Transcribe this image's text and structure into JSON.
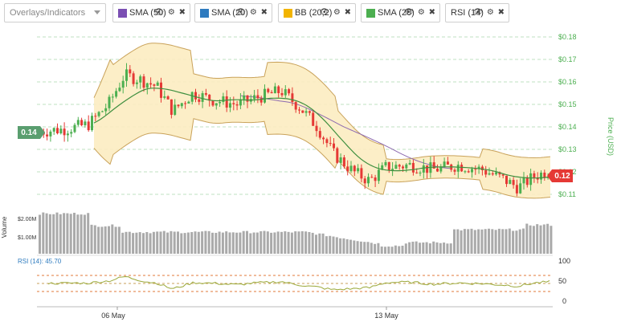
{
  "toolbar": {
    "overlays_placeholder": "Overlays/Indicators",
    "chips": [
      {
        "label": "SMA (50)",
        "color": "#7b4fb3"
      },
      {
        "label": "SMA (20)",
        "color": "#2e7bbf"
      },
      {
        "label": "BB (20,2)",
        "color": "#f2b400"
      },
      {
        "label": "SMA (20)",
        "color": "#4caf50"
      },
      {
        "label": "RSI (14)",
        "color": "#ffffff"
      }
    ],
    "eye_glyph": "👁",
    "gear_glyph": "⚙",
    "close_glyph": "✖"
  },
  "chart_data": {
    "type": "candlestick",
    "price_axis": {
      "title": "Price (USD)",
      "ticks": [
        "$0.18",
        "$0.17",
        "$0.16",
        "$0.15",
        "$0.14",
        "$0.13",
        "$0.12",
        "$0.11"
      ],
      "range": [
        0.105,
        0.181
      ]
    },
    "volume_axis": {
      "title": "Volume",
      "ticks": [
        "$2.00M",
        "$1.00M"
      ]
    },
    "rsi": {
      "label": "RSI (14): 45.70",
      "ticks": [
        "100",
        "50",
        "0"
      ],
      "bands": [
        70,
        50,
        30
      ]
    },
    "x_ticks": [
      "06 May",
      "13 May"
    ],
    "left_price_badge": "0.14",
    "last_price_badge": "0.12",
    "accent_up": "#4caf50",
    "accent_down": "#e53935",
    "bb_fill": "#fcecc1",
    "bb_stroke": "#c9a25a",
    "sma20_color": "#3f8f3f",
    "sma50_color": "#8e6bb0",
    "axis_text_color": "#4caf50"
  }
}
